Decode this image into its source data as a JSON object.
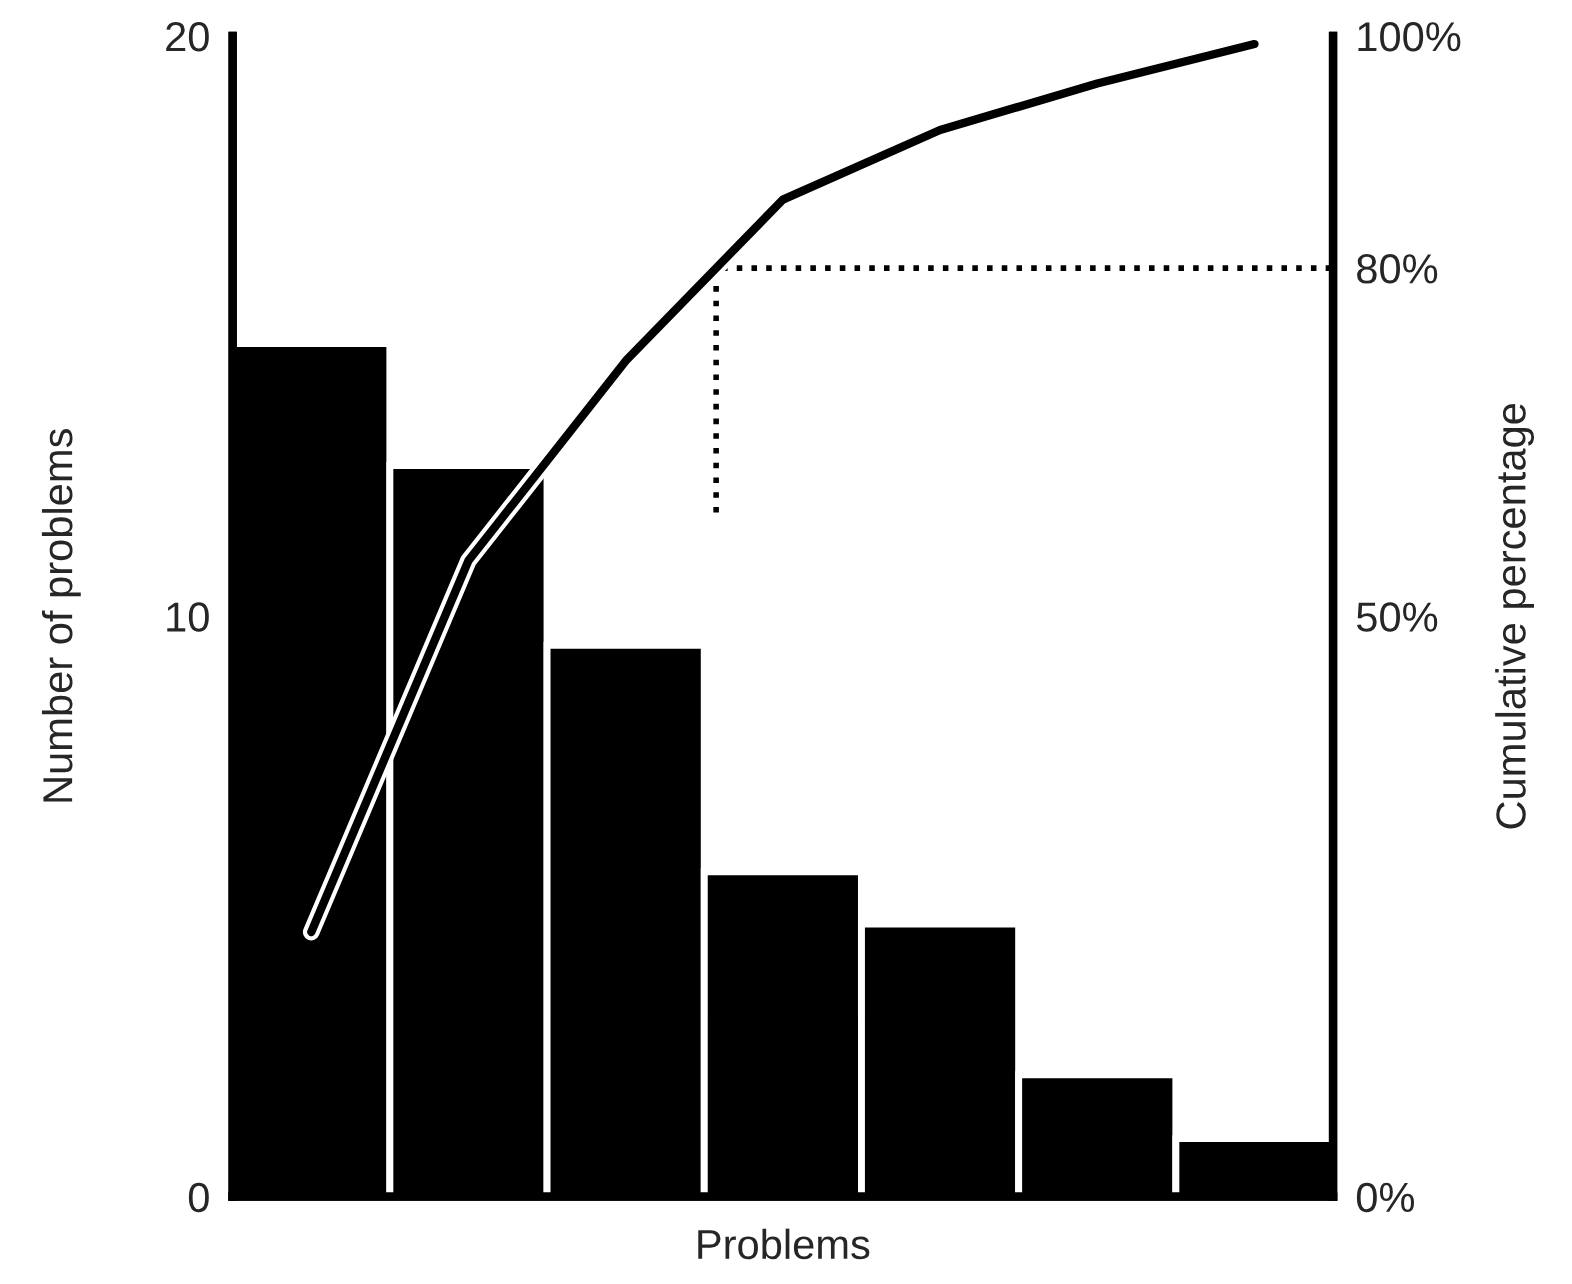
{
  "chart_data": {
    "type": "bar",
    "xlabel": "Problems",
    "ylabel": "Number of problems",
    "y2label": "Cumulative percentage",
    "categories": [
      null,
      null,
      null,
      null,
      null,
      null,
      null
    ],
    "ylim": [
      0,
      20
    ],
    "yticks": [
      0,
      10,
      20
    ],
    "y2lim": [
      0,
      100
    ],
    "y2ticks": [
      {
        "value": 0,
        "label": "0%"
      },
      {
        "value": 50,
        "label": "50%"
      },
      {
        "value": 80,
        "label": "80%"
      },
      {
        "value": 100,
        "label": "100%"
      }
    ],
    "grid": false,
    "legend": false,
    "series": [
      {
        "color": "#000000",
        "values": [
          14.7,
          12.6,
          9.5,
          5.6,
          4.7,
          2.1,
          1.0
        ]
      },
      {
        "type": "line",
        "axis": "y2",
        "color": "#000000",
        "line_style": "solid",
        "values": [
          22.8,
          54.8,
          72,
          85.9,
          91.9,
          95.9,
          99.3
        ]
      }
    ],
    "ref_lines": [
      {
        "axis": "y2",
        "value": 80,
        "line_style": "dotted",
        "color": "#000000"
      }
    ]
  }
}
